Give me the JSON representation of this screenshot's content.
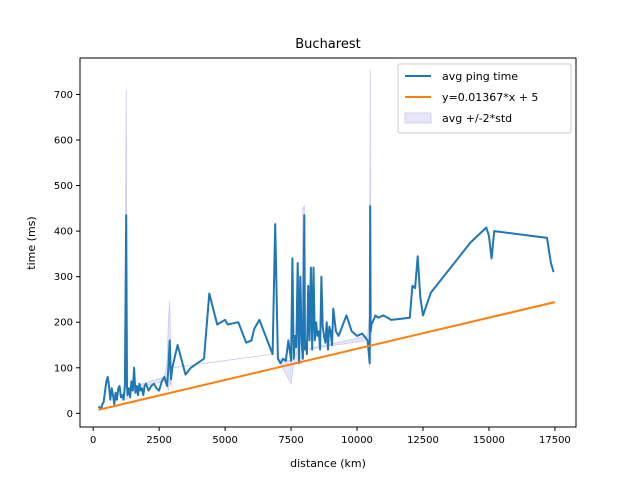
{
  "chart_data": {
    "type": "line",
    "title": "Bucharest",
    "xlabel": "distance (km)",
    "ylabel": "time (ms)",
    "xlim": [
      -500,
      18300
    ],
    "ylim": [
      -30,
      780
    ],
    "xticks": [
      0,
      2500,
      5000,
      7500,
      10000,
      12500,
      15000,
      17500
    ],
    "yticks": [
      0,
      100,
      200,
      300,
      400,
      500,
      600,
      700
    ],
    "grid": false,
    "legend_position": "top-right",
    "legend": [
      "avg ping time",
      "y=0.01367*x + 5",
      "avg +/-2*std"
    ],
    "colors": {
      "avg": "#1f77b4",
      "fit": "#ff7f0e",
      "band_fill": "#e6e6fa",
      "band_stroke": "#c8c8f0"
    },
    "series": [
      {
        "name": "avg ping time",
        "kind": "line",
        "x": [
          200,
          300,
          350,
          400,
          450,
          500,
          550,
          600,
          650,
          700,
          750,
          800,
          850,
          900,
          950,
          1000,
          1050,
          1100,
          1150,
          1200,
          1250,
          1280,
          1300,
          1350,
          1400,
          1450,
          1500,
          1550,
          1600,
          1650,
          1700,
          1750,
          1800,
          1850,
          1900,
          1950,
          2000,
          2100,
          2200,
          2300,
          2400,
          2500,
          2600,
          2700,
          2800,
          2850,
          2900,
          2950,
          3000,
          3200,
          3500,
          3700,
          4200,
          4400,
          4700,
          5000,
          5100,
          5500,
          5800,
          6000,
          6100,
          6300,
          6500,
          6800,
          6900,
          7000,
          7100,
          7200,
          7300,
          7400,
          7500,
          7550,
          7600,
          7650,
          7700,
          7750,
          7800,
          7850,
          7900,
          7950,
          8000,
          8030,
          8060,
          8100,
          8150,
          8200,
          8250,
          8300,
          8350,
          8400,
          8450,
          8500,
          8550,
          8600,
          8650,
          8700,
          8750,
          8800,
          8850,
          8900,
          8950,
          9000,
          9050,
          9100,
          9200,
          9300,
          9400,
          9500,
          9600,
          9800,
          10000,
          10200,
          10400,
          10480,
          10500,
          10520,
          10550,
          10700,
          10800,
          11000,
          11300,
          12000,
          12100,
          12200,
          12300,
          12400,
          12500,
          12800,
          14300,
          14900,
          15000,
          15100,
          15200,
          17200,
          17350,
          17450
        ],
        "y": [
          15,
          10,
          20,
          25,
          50,
          70,
          80,
          60,
          30,
          55,
          40,
          20,
          45,
          30,
          55,
          60,
          35,
          40,
          30,
          60,
          435,
          60,
          40,
          55,
          35,
          70,
          50,
          100,
          45,
          60,
          40,
          65,
          50,
          55,
          40,
          60,
          65,
          50,
          60,
          65,
          55,
          50,
          70,
          80,
          60,
          100,
          160,
          75,
          100,
          150,
          85,
          100,
          120,
          263,
          195,
          205,
          195,
          200,
          155,
          160,
          185,
          205,
          175,
          130,
          415,
          120,
          110,
          120,
          115,
          160,
          115,
          340,
          120,
          170,
          145,
          330,
          110,
          300,
          160,
          120,
          435,
          140,
          160,
          130,
          280,
          160,
          320,
          140,
          320,
          160,
          200,
          170,
          180,
          140,
          300,
          190,
          170,
          155,
          200,
          140,
          190,
          180,
          150,
          230,
          180,
          170,
          185,
          200,
          215,
          180,
          170,
          175,
          160,
          110,
          455,
          180,
          195,
          215,
          210,
          215,
          205,
          210,
          280,
          275,
          345,
          255,
          215,
          265,
          375,
          408,
          390,
          340,
          400,
          385,
          330,
          310
        ]
      },
      {
        "name": "y=0.01367*x + 5",
        "kind": "line",
        "x": [
          200,
          17500
        ],
        "y": [
          7.7,
          244.2
        ]
      },
      {
        "name": "avg +/-2*std",
        "kind": "band",
        "x": [
          1150,
          1200,
          1250,
          1280,
          1300,
          1350,
          2700,
          2800,
          2850,
          2900,
          2950,
          3000,
          6800,
          6900,
          7000,
          7500,
          7550,
          7600,
          7900,
          7950,
          8000,
          8030,
          10400,
          10480,
          10500,
          10520,
          10550
        ],
        "upper": [
          30,
          90,
          710,
          90,
          40,
          55,
          80,
          110,
          200,
          245,
          100,
          100,
          130,
          420,
          120,
          115,
          120,
          120,
          160,
          450,
          455,
          140,
          170,
          220,
          755,
          220,
          180
        ],
        "lower": [
          30,
          30,
          160,
          30,
          40,
          55,
          70,
          60,
          50,
          75,
          60,
          100,
          130,
          410,
          120,
          65,
          90,
          110,
          110,
          420,
          415,
          140,
          160,
          100,
          150,
          140,
          180
        ]
      }
    ]
  }
}
